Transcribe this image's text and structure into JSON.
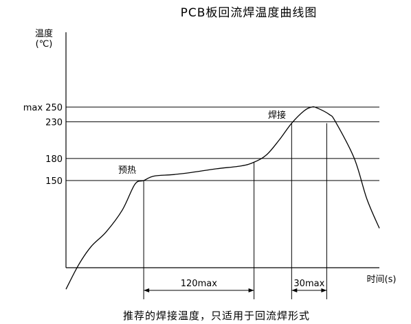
{
  "chart_data": {
    "type": "line",
    "title": "PCB板回流焊温度曲线图",
    "ylabel": "温度",
    "ylabel_unit": "(℃)",
    "xlabel": "时间(s)",
    "y_ticks": [
      {
        "value": 250,
        "label": "max 250"
      },
      {
        "value": 230,
        "label": "230"
      },
      {
        "value": 180,
        "label": "180"
      },
      {
        "value": 150,
        "label": "150"
      }
    ],
    "ylim": [
      0,
      250
    ],
    "series": [
      {
        "x": [
          0,
          10,
          20,
          32,
          45,
          55,
          62,
          70,
          85,
          100,
          120,
          140,
          150,
          160,
          170,
          180,
          190,
          196,
          200,
          210,
          215,
          230,
          240,
          250
        ],
        "values": [
          2,
          35,
          60,
          80,
          110,
          145,
          150,
          156,
          158,
          161,
          166,
          170,
          175,
          185,
          205,
          228,
          245,
          250,
          249,
          240,
          230,
          180,
          125,
          85
        ]
      }
    ],
    "annotations": {
      "preheat": "预热",
      "soldering": "焊接",
      "span_preheat": "120max",
      "span_soldering": "30max"
    },
    "footer": "推荐的焊接温度，只适用于回流焊形式"
  }
}
